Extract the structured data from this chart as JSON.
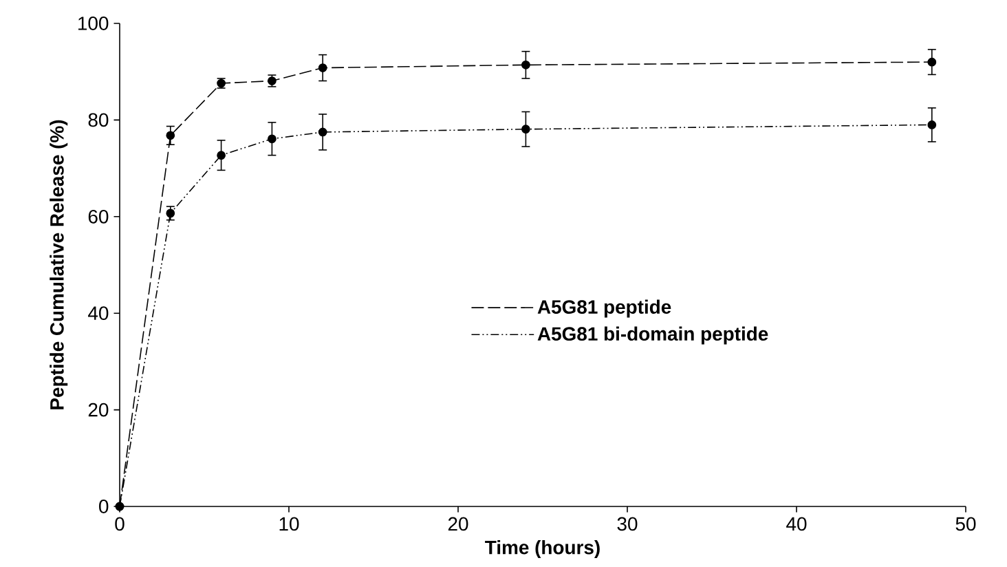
{
  "chart_data": {
    "type": "line",
    "xlabel": "Time (hours)",
    "ylabel": "Peptide Cumulative Release (%)",
    "x": [
      0,
      3,
      6,
      9,
      12,
      24,
      48
    ],
    "series": [
      {
        "name": "A5G81 peptide",
        "color": "#000000",
        "line_style": "dashed",
        "values": [
          0,
          76.8,
          87.6,
          88.1,
          90.8,
          91.4,
          92
        ],
        "errors": [
          null,
          1.9,
          1,
          1.2,
          2.7,
          2.8,
          2.6
        ]
      },
      {
        "name": "A5G81 bi-domain peptide",
        "color": "#000000",
        "line_style": "dotted",
        "values": [
          0,
          60.7,
          72.7,
          76.1,
          77.5,
          78.1,
          79
        ],
        "errors": [
          null,
          1.4,
          3.1,
          3.4,
          3.7,
          3.6,
          3.5
        ]
      }
    ],
    "xlim": [
      0,
      50
    ],
    "xticks": [
      0,
      10,
      20,
      30,
      40,
      50
    ],
    "ylim": [
      0,
      100
    ],
    "yticks": [
      0,
      20,
      40,
      60,
      80,
      100
    ],
    "marker": "circle",
    "legend": "right",
    "grid": false
  }
}
